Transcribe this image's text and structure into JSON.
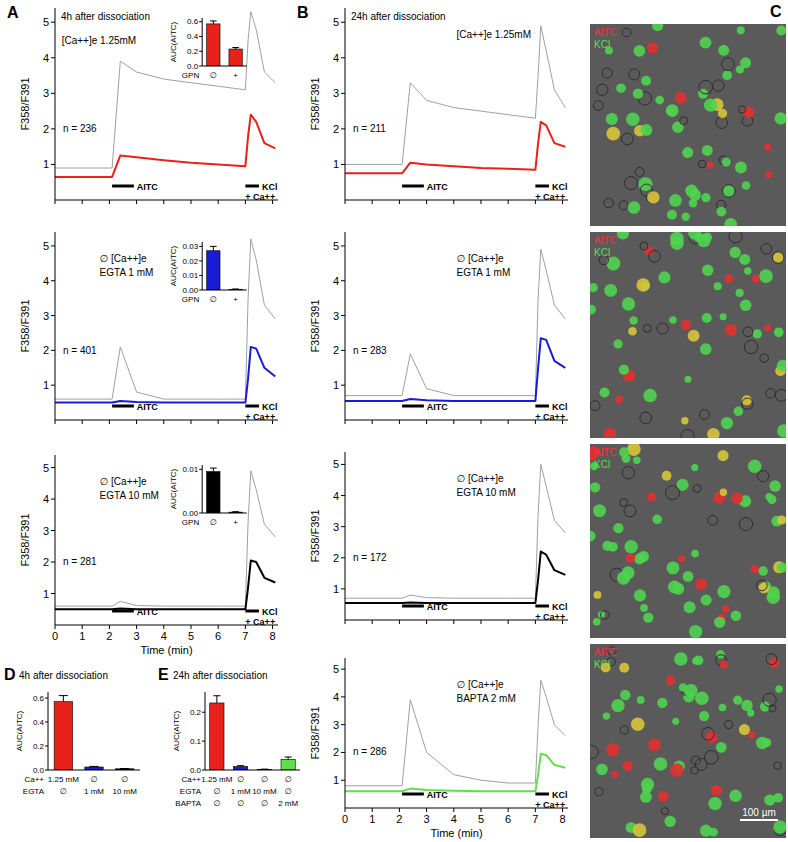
{
  "chart_data": [
    {
      "type": "line",
      "panel_label": "A",
      "title": "4h after dissociation",
      "annotations": [
        "[Ca++]e 1.25mM"
      ],
      "n_label": "n = 236",
      "x": [
        0,
        2.1,
        2.4,
        3,
        4,
        5,
        6,
        7,
        7.1,
        7.2,
        7.4,
        7.7,
        8.1
      ],
      "series": [
        {
          "color": "#a0a0a0",
          "values": [
            0.9,
            0.9,
            3.9,
            3.6,
            3.4,
            3.3,
            3.2,
            3.1,
            4.5,
            5.3,
            4.8,
            3.6,
            3.3
          ]
        },
        {
          "color": "#e8211b",
          "values": [
            0.65,
            0.65,
            1.25,
            1.2,
            1.12,
            1.05,
            1.0,
            0.95,
            1.8,
            2.4,
            2.2,
            1.6,
            1.45
          ]
        }
      ],
      "xlim": [
        0,
        8.2
      ],
      "ylim": [
        0,
        5.4
      ],
      "xticks": [
        0,
        1,
        2,
        3,
        4,
        5,
        6,
        7,
        8
      ],
      "yticks": [
        1,
        2,
        3,
        4,
        5
      ],
      "tick_labels": "y",
      "y_label": "F358/F391",
      "stimuli": [
        {
          "label": [
            "AITC"
          ],
          "start": 2.1,
          "end": 2.9
        },
        {
          "label": [
            "KCl",
            "+ Ca++"
          ],
          "start": 7.0,
          "end": 7.5
        }
      ],
      "inset": {
        "type": "bar",
        "categories": [
          "∅",
          "+"
        ],
        "values": [
          0.57,
          0.23
        ],
        "errors": [
          0.04,
          0.02
        ],
        "color": "#e8211b",
        "ylim": [
          0,
          0.65
        ],
        "yticks": [
          {
            "value": 0,
            "label": "0.0"
          },
          0.2,
          0.4,
          0.6
        ],
        "y_label": "AUC(AITC)",
        "x_label": "GPN"
      }
    },
    {
      "type": "line",
      "annotations": [
        "∅ [Ca++]e",
        "EGTA 1 mM"
      ],
      "n_label": "n = 401",
      "x": [
        0,
        2.1,
        2.4,
        3,
        4,
        5,
        6,
        7,
        7.1,
        7.2,
        7.4,
        7.7,
        8.1
      ],
      "series": [
        {
          "color": "#a0a0a0",
          "values": [
            0.6,
            0.6,
            2.1,
            0.8,
            0.6,
            0.6,
            0.6,
            0.6,
            3.5,
            5.2,
            4.6,
            3.3,
            2.9
          ]
        },
        {
          "color": "#1a1adb",
          "values": [
            0.5,
            0.5,
            0.55,
            0.52,
            0.5,
            0.5,
            0.5,
            0.5,
            1.2,
            2.1,
            2.05,
            1.5,
            1.25
          ]
        }
      ],
      "xlim": [
        0,
        8.2
      ],
      "ylim": [
        0,
        5.4
      ],
      "xticks": [
        0,
        1,
        2,
        3,
        4,
        5,
        6,
        7,
        8
      ],
      "yticks": [
        1,
        2,
        3,
        4,
        5
      ],
      "tick_labels": "y",
      "y_label": "F358/F391",
      "stimuli": [
        {
          "label": [
            "AITC"
          ],
          "start": 2.1,
          "end": 2.9
        },
        {
          "label": [
            "KCl",
            "+ Ca++"
          ],
          "start": 7.0,
          "end": 7.5
        }
      ],
      "inset": {
        "type": "bar",
        "categories": [
          "∅",
          "+"
        ],
        "values": [
          0.027,
          0.0005
        ],
        "errors": [
          0.003,
          0.0002
        ],
        "color": "#1a1adb",
        "ylim": [
          0,
          0.033
        ],
        "yticks": [
          {
            "value": 0,
            "label": "0.00"
          },
          0.01,
          0.02,
          0.03
        ],
        "y_label": "AUC(AITC)",
        "x_label": "GPN"
      }
    },
    {
      "type": "line",
      "annotations": [
        "∅ [Ca++]e",
        "EGTA 10 mM"
      ],
      "n_label": "n = 281",
      "x": [
        0,
        2.1,
        2.4,
        3,
        4,
        5,
        6,
        7,
        7.1,
        7.2,
        7.4,
        7.7,
        8.1
      ],
      "series": [
        {
          "color": "#a0a0a0",
          "values": [
            0.6,
            0.6,
            0.75,
            0.62,
            0.6,
            0.6,
            0.6,
            0.6,
            3.3,
            4.9,
            4.3,
            3.2,
            2.8
          ]
        },
        {
          "color": "#000000",
          "values": [
            0.5,
            0.5,
            0.52,
            0.5,
            0.5,
            0.5,
            0.5,
            0.5,
            1.2,
            2.05,
            2.0,
            1.5,
            1.35
          ]
        }
      ],
      "xlim": [
        0,
        8.2
      ],
      "ylim": [
        0,
        5.4
      ],
      "xticks": [
        0,
        1,
        2,
        3,
        4,
        5,
        6,
        7,
        8
      ],
      "yticks": [
        1,
        2,
        3,
        4,
        5
      ],
      "tick_labels": true,
      "y_label": "F358/F391",
      "x_label": "Time (min)",
      "stimuli": [
        {
          "label": [
            "AITC"
          ],
          "start": 2.1,
          "end": 2.9
        },
        {
          "label": [
            "KCl",
            "+ Ca++"
          ],
          "start": 7.0,
          "end": 7.5
        }
      ],
      "inset": {
        "type": "bar",
        "categories": [
          "∅",
          "+"
        ],
        "values": [
          0.0095,
          0.0002
        ],
        "errors": [
          0.0008,
          0.0001
        ],
        "color": "#000000",
        "ylim": [
          0,
          0.011
        ],
        "yticks": [
          {
            "value": 0,
            "label": "0.00"
          },
          0.01
        ],
        "y_label": "AUC(AITC)",
        "x_label": "GPN"
      }
    },
    {
      "type": "line",
      "panel_label": "B",
      "title": "24h after dissociation",
      "annotations": [
        "[Ca++]e 1.25mM"
      ],
      "n_label": "n = 211",
      "x": [
        0,
        2.1,
        2.4,
        3,
        4,
        5,
        6,
        7,
        7.1,
        7.2,
        7.4,
        7.7,
        8.1
      ],
      "series": [
        {
          "color": "#a0a0a0",
          "values": [
            1.0,
            1.0,
            3.3,
            2.8,
            2.6,
            2.5,
            2.4,
            2.3,
            3.5,
            4.9,
            4.2,
            3.1,
            2.6
          ]
        },
        {
          "color": "#e8211b",
          "values": [
            0.75,
            0.75,
            1.05,
            1.0,
            0.95,
            0.9,
            0.88,
            0.85,
            1.6,
            2.2,
            2.1,
            1.6,
            1.5
          ]
        }
      ],
      "xlim": [
        0,
        8.2
      ],
      "ylim": [
        0,
        5.4
      ],
      "xticks": [
        0,
        1,
        2,
        3,
        4,
        5,
        6,
        7,
        8
      ],
      "yticks": [
        1,
        2,
        3,
        4,
        5
      ],
      "tick_labels": "y",
      "y_label": "F358/F391",
      "stimuli": [
        {
          "label": [
            "AITC"
          ],
          "start": 2.1,
          "end": 2.9
        },
        {
          "label": [
            "KCl",
            "+ Ca++"
          ],
          "start": 7.0,
          "end": 7.5
        }
      ]
    },
    {
      "type": "line",
      "annotations": [
        "∅ [Ca++]e",
        "EGTA 1 mM"
      ],
      "n_label": "n = 283",
      "x": [
        0,
        2.1,
        2.4,
        3,
        4,
        5,
        6,
        7,
        7.1,
        7.2,
        7.4,
        7.7,
        8.1
      ],
      "series": [
        {
          "color": "#a0a0a0",
          "values": [
            0.7,
            0.7,
            1.9,
            0.9,
            0.7,
            0.7,
            0.7,
            0.7,
            3.5,
            4.9,
            4.3,
            3.3,
            2.9
          ]
        },
        {
          "color": "#1a1adb",
          "values": [
            0.55,
            0.55,
            0.6,
            0.57,
            0.55,
            0.55,
            0.55,
            0.55,
            1.5,
            2.35,
            2.3,
            1.7,
            1.5
          ]
        }
      ],
      "xlim": [
        0,
        8.2
      ],
      "ylim": [
        0,
        5.4
      ],
      "xticks": [
        0,
        1,
        2,
        3,
        4,
        5,
        6,
        7,
        8
      ],
      "yticks": [
        1,
        2,
        3,
        4,
        5
      ],
      "tick_labels": "y",
      "y_label": "F358/F391",
      "stimuli": [
        {
          "label": [
            "AITC"
          ],
          "start": 2.1,
          "end": 2.9
        },
        {
          "label": [
            "KCl",
            "+ Ca++"
          ],
          "start": 7.0,
          "end": 7.5
        }
      ]
    },
    {
      "type": "line",
      "annotations": [
        "∅ [Ca++]e",
        "EGTA 10 mM"
      ],
      "n_label": "n = 172",
      "x": [
        0,
        2.1,
        2.4,
        3,
        4,
        5,
        6,
        7,
        7.1,
        7.2,
        7.4,
        7.7,
        8.1
      ],
      "series": [
        {
          "color": "#a0a0a0",
          "values": [
            0.7,
            0.7,
            0.8,
            0.72,
            0.7,
            0.7,
            0.7,
            0.7,
            3.4,
            5.0,
            4.3,
            3.2,
            2.8
          ]
        },
        {
          "color": "#000000",
          "values": [
            0.55,
            0.55,
            0.56,
            0.55,
            0.55,
            0.55,
            0.55,
            0.55,
            1.3,
            2.2,
            2.1,
            1.6,
            1.45
          ]
        }
      ],
      "xlim": [
        0,
        8.2
      ],
      "ylim": [
        0,
        5.4
      ],
      "xticks": [
        0,
        1,
        2,
        3,
        4,
        5,
        6,
        7,
        8
      ],
      "yticks": [
        1,
        2,
        3,
        4,
        5
      ],
      "tick_labels": "y",
      "y_label": "F358/F391",
      "stimuli": [
        {
          "label": [
            "AITC"
          ],
          "start": 2.1,
          "end": 2.9
        },
        {
          "label": [
            "KCl",
            "+ Ca++"
          ],
          "start": 7.0,
          "end": 7.5
        }
      ]
    },
    {
      "type": "line",
      "annotations": [
        "∅ [Ca++]e",
        "BAPTA 2 mM"
      ],
      "n_label": "n = 286",
      "x": [
        0,
        2.1,
        2.4,
        3,
        4,
        5,
        6,
        7,
        7.1,
        7.2,
        7.4,
        7.7,
        8.1
      ],
      "series": [
        {
          "color": "#a0a0a0",
          "values": [
            0.8,
            0.8,
            3.9,
            2.0,
            1.2,
            1.0,
            0.9,
            0.9,
            3.0,
            4.6,
            4.0,
            3.0,
            2.6
          ]
        },
        {
          "color": "#5ee04a",
          "values": [
            0.6,
            0.6,
            0.7,
            0.65,
            0.62,
            0.6,
            0.6,
            0.6,
            1.2,
            1.95,
            1.9,
            1.55,
            1.45
          ]
        }
      ],
      "xlim": [
        0,
        8.2
      ],
      "ylim": [
        0,
        5.4
      ],
      "xticks": [
        0,
        1,
        2,
        3,
        4,
        5,
        6,
        7,
        8
      ],
      "yticks": [
        1,
        2,
        3,
        4,
        5
      ],
      "tick_labels": true,
      "y_label": "F358/F391",
      "x_label": "Time (min)",
      "stimuli": [
        {
          "label": [
            "AITC"
          ],
          "start": 2.1,
          "end": 2.9
        },
        {
          "label": [
            "KCl",
            "+ Ca++"
          ],
          "start": 7.0,
          "end": 7.5
        }
      ]
    },
    {
      "type": "bar",
      "panel_label": "D",
      "title": "4h after dissociation",
      "values": [
        0.57,
        0.025,
        0.01
      ],
      "errors": [
        0.05,
        0.005,
        0.002
      ],
      "colors": [
        "#e8211b",
        "#1a1adb",
        "#000000"
      ],
      "ylim": [
        0,
        0.65
      ],
      "yticks": [
        {
          "value": 0,
          "label": "0.0"
        },
        0.2,
        0.4,
        0.6
      ],
      "y_label": "AUC(AITC)",
      "table": [
        {
          "label": "Ca++",
          "cells": [
            "1.25 mM",
            "∅",
            "∅"
          ]
        },
        {
          "label": "EGTA",
          "cells": [
            "∅",
            "1 mM",
            "10 mM"
          ]
        }
      ]
    },
    {
      "type": "bar",
      "panel_label": "E",
      "title": "24h after dissociation",
      "values": [
        0.232,
        0.012,
        0.002,
        0.037
      ],
      "errors": [
        0.025,
        0.003,
        0.001,
        0.008
      ],
      "colors": [
        "#e8211b",
        "#1a1adb",
        "#000000",
        "#5ee04a"
      ],
      "ylim": [
        0,
        0.27
      ],
      "yticks": [
        {
          "value": 0,
          "label": "0.0"
        },
        0.1,
        0.2
      ],
      "y_label": "AUC(AITC)",
      "table": [
        {
          "label": "Ca++",
          "cells": [
            "1.25 mM",
            "∅",
            "∅",
            "∅"
          ]
        },
        {
          "label": "EGTA",
          "cells": [
            "∅",
            "1 mM",
            "10 mM",
            "∅"
          ]
        },
        {
          "label": "BAPTA",
          "cells": [
            "∅",
            "∅",
            "∅",
            "2 mM"
          ]
        }
      ]
    }
  ],
  "panel_c": {
    "label": "C",
    "images": [
      {
        "legend": [
          "AITC",
          "KCl"
        ]
      },
      {
        "legend": [
          "AITC",
          "KCl"
        ]
      },
      {
        "legend": [
          "AITC",
          "KCl"
        ]
      },
      {
        "legend": [
          "AITC",
          "KCl"
        ]
      }
    ],
    "scale_bar": "100 µm"
  }
}
